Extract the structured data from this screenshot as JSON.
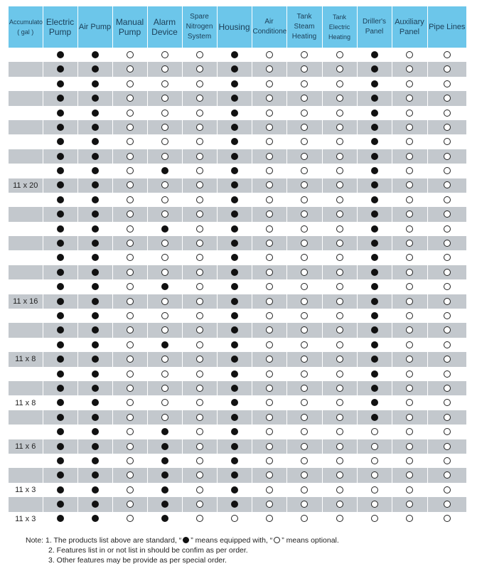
{
  "table": {
    "headers": [
      {
        "label": "Accumulators\n( gal )",
        "size": 9
      },
      {
        "label": "Electric\nPump",
        "size": 12
      },
      {
        "label": "Air Pump",
        "size": 11
      },
      {
        "label": "Manual\nPump",
        "size": 12
      },
      {
        "label": "Alarm\nDevice",
        "size": 12
      },
      {
        "label": "Spare\nNitrogen\nSystem",
        "size": 10
      },
      {
        "label": "Housing",
        "size": 12
      },
      {
        "label": "Air\nConditioner",
        "size": 10
      },
      {
        "label": "Tank Steam\nHeating",
        "size": 10
      },
      {
        "label": "Tank Electric\nHeating",
        "size": 9
      },
      {
        "label": "Driller's\nPanel",
        "size": 10
      },
      {
        "label": "Auxiliary\nPanel",
        "size": 11
      },
      {
        "label": "Pipe Lines",
        "size": 11
      }
    ],
    "legend": {
      "filled": "equipped",
      "empty": "optional"
    },
    "rows": [
      {
        "acc": "",
        "marks": "110001000100"
      },
      {
        "acc": "",
        "marks": "110001000100"
      },
      {
        "acc": "",
        "marks": "110001000100"
      },
      {
        "acc": "",
        "marks": "110001000100"
      },
      {
        "acc": "",
        "marks": "110001000100"
      },
      {
        "acc": "",
        "marks": "110001000100"
      },
      {
        "acc": "",
        "marks": "110001000100"
      },
      {
        "acc": "",
        "marks": "110001000100"
      },
      {
        "acc": "",
        "marks": "110101000100"
      },
      {
        "acc": "11 x 20",
        "marks": "110001000100"
      },
      {
        "acc": "",
        "marks": "110001000100"
      },
      {
        "acc": "",
        "marks": "110001000100"
      },
      {
        "acc": "",
        "marks": "110101000100"
      },
      {
        "acc": "",
        "marks": "110001000100"
      },
      {
        "acc": "",
        "marks": "110001000100"
      },
      {
        "acc": "",
        "marks": "110001000100"
      },
      {
        "acc": "",
        "marks": "110101000100"
      },
      {
        "acc": "11 x 16",
        "marks": "110001000100"
      },
      {
        "acc": "",
        "marks": "110001000100"
      },
      {
        "acc": "",
        "marks": "110001000100"
      },
      {
        "acc": "",
        "marks": "110101000100"
      },
      {
        "acc": "11 x 8",
        "marks": "110001000100"
      },
      {
        "acc": "",
        "marks": "110001000100"
      },
      {
        "acc": "",
        "marks": "110001000100"
      },
      {
        "acc": "11 x 8",
        "marks": "110001000100"
      },
      {
        "acc": "",
        "marks": "110001000100"
      },
      {
        "acc": "",
        "marks": "110101000000"
      },
      {
        "acc": "11 x 6",
        "marks": "110101000000"
      },
      {
        "acc": "",
        "marks": "110101000000"
      },
      {
        "acc": "",
        "marks": "110101000000"
      },
      {
        "acc": "11 x 3",
        "marks": "110101000000"
      },
      {
        "acc": "",
        "marks": "110101000000"
      },
      {
        "acc": "11 x 3",
        "marks": "110100000000"
      }
    ]
  },
  "notes": {
    "line1_pre": "Note: 1. The products list above are standard, “",
    "line1_mid": "” means equipped with, “",
    "line1_post": "” means optional.",
    "line2": "2. Features list in or not list in should be confim as per order.",
    "line3": "3. Other features may be provide as per special order."
  }
}
